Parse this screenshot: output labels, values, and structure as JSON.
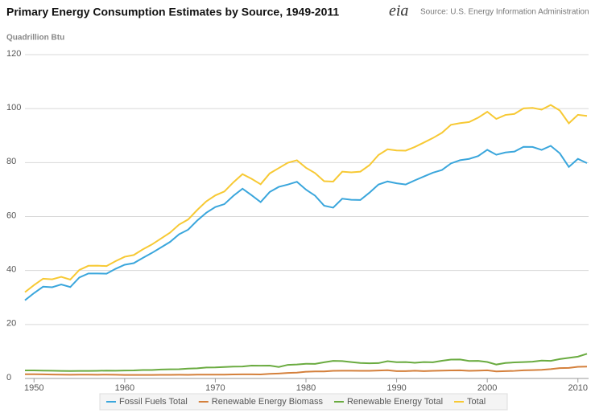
{
  "chart_data": {
    "type": "line",
    "title": "Primary Energy Consumption Estimates by Source, 1949-2011",
    "logo": "eia",
    "source": "Source: U.S. Energy Information Administration",
    "y_label": "Quadrillion Btu",
    "x": [
      1949,
      1950,
      1951,
      1952,
      1953,
      1954,
      1955,
      1956,
      1957,
      1958,
      1959,
      1960,
      1961,
      1962,
      1963,
      1964,
      1965,
      1966,
      1967,
      1968,
      1969,
      1970,
      1971,
      1972,
      1973,
      1974,
      1975,
      1976,
      1977,
      1978,
      1979,
      1980,
      1981,
      1982,
      1983,
      1984,
      1985,
      1986,
      1987,
      1988,
      1989,
      1990,
      1991,
      1992,
      1993,
      1994,
      1995,
      1996,
      1997,
      1998,
      1999,
      2000,
      2001,
      2002,
      2003,
      2004,
      2005,
      2006,
      2007,
      2008,
      2009,
      2010,
      2011
    ],
    "xlim": [
      1949,
      2011
    ],
    "xticks": [
      1950,
      1960,
      1970,
      1980,
      1990,
      2000,
      2010
    ],
    "ylim": [
      0,
      120
    ],
    "yticks": [
      0,
      20,
      40,
      60,
      80,
      100,
      120
    ],
    "grid": true,
    "legend": "bottom",
    "series": [
      {
        "name": "Fossil Fuels Total",
        "color": "#3aa6dc",
        "values": [
          28.97,
          31.63,
          34.01,
          33.8,
          34.82,
          33.87,
          37.41,
          38.9,
          38.89,
          38.81,
          40.63,
          42.14,
          42.72,
          44.68,
          46.51,
          48.54,
          50.58,
          53.41,
          55.13,
          58.5,
          61.39,
          63.52,
          64.6,
          67.7,
          70.32,
          67.91,
          65.36,
          69.1,
          70.99,
          71.86,
          72.89,
          69.98,
          67.75,
          64.04,
          63.29,
          66.62,
          66.22,
          66.15,
          68.84,
          71.86,
          73.0,
          72.33,
          71.88,
          73.4,
          74.84,
          76.26,
          77.26,
          79.7,
          80.87,
          81.37,
          82.43,
          84.73,
          82.9,
          83.75,
          84.08,
          85.83,
          85.79,
          84.69,
          86.2,
          83.44,
          78.4,
          81.37,
          79.81
        ]
      },
      {
        "name": "Renewable Energy Biomass",
        "color": "#d4803c",
        "values": [
          1.55,
          1.56,
          1.51,
          1.47,
          1.4,
          1.36,
          1.42,
          1.42,
          1.39,
          1.41,
          1.39,
          1.32,
          1.29,
          1.3,
          1.32,
          1.34,
          1.33,
          1.37,
          1.34,
          1.43,
          1.42,
          1.43,
          1.43,
          1.5,
          1.53,
          1.54,
          1.5,
          1.71,
          1.84,
          2.04,
          2.15,
          2.48,
          2.59,
          2.62,
          2.83,
          2.88,
          2.86,
          2.84,
          2.82,
          2.94,
          3.06,
          2.73,
          2.71,
          2.85,
          2.71,
          2.84,
          2.9,
          2.97,
          3.01,
          2.84,
          2.89,
          3.01,
          2.62,
          2.7,
          2.81,
          3.02,
          3.1,
          3.21,
          3.47,
          3.85,
          3.9,
          4.31,
          4.41
        ]
      },
      {
        "name": "Renewable Energy Total",
        "color": "#6aab40",
        "values": [
          2.97,
          2.98,
          2.89,
          2.86,
          2.8,
          2.77,
          2.78,
          2.81,
          2.83,
          2.92,
          2.88,
          2.93,
          2.96,
          3.12,
          3.12,
          3.31,
          3.4,
          3.43,
          3.64,
          3.77,
          4.04,
          4.08,
          4.26,
          4.4,
          4.43,
          4.77,
          4.72,
          4.77,
          4.25,
          5.04,
          5.17,
          5.43,
          5.41,
          5.98,
          6.5,
          6.44,
          6.08,
          5.74,
          5.62,
          5.68,
          6.39,
          6.04,
          6.07,
          5.82,
          6.07,
          5.99,
          6.56,
          7.01,
          7.02,
          6.49,
          6.52,
          6.1,
          5.16,
          5.73,
          5.94,
          6.06,
          6.23,
          6.64,
          6.52,
          7.19,
          7.62,
          8.08,
          9.14
        ]
      },
      {
        "name": "Total",
        "color": "#f7c934",
        "values": [
          31.98,
          34.6,
          36.97,
          36.75,
          37.66,
          36.64,
          40.21,
          41.75,
          41.79,
          41.65,
          43.47,
          45.09,
          45.74,
          47.83,
          49.64,
          51.82,
          54.02,
          57.01,
          58.91,
          62.42,
          65.62,
          67.84,
          69.29,
          72.7,
          75.71,
          73.99,
          71.97,
          75.98,
          77.96,
          79.95,
          80.86,
          78.07,
          76.11,
          73.1,
          72.97,
          76.63,
          76.39,
          76.64,
          79.02,
          82.82,
          84.94,
          84.49,
          84.43,
          85.78,
          87.42,
          89.09,
          91.03,
          94.02,
          94.6,
          95.02,
          96.65,
          98.82,
          96.17,
          97.65,
          98.03,
          100.09,
          100.28,
          99.62,
          101.36,
          99.29,
          94.56,
          97.69,
          97.3
        ]
      }
    ]
  }
}
